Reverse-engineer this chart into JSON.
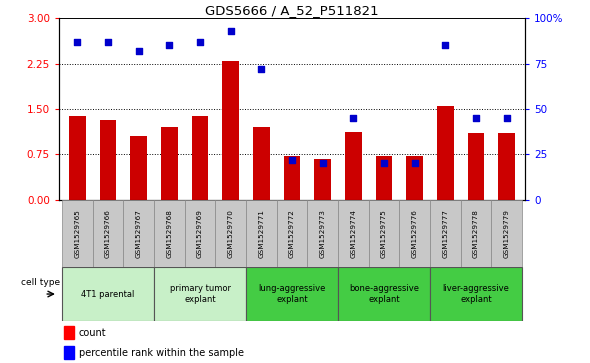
{
  "title": "GDS5666 / A_52_P511821",
  "samples": [
    "GSM1529765",
    "GSM1529766",
    "GSM1529767",
    "GSM1529768",
    "GSM1529769",
    "GSM1529770",
    "GSM1529771",
    "GSM1529772",
    "GSM1529773",
    "GSM1529774",
    "GSM1529775",
    "GSM1529776",
    "GSM1529777",
    "GSM1529778",
    "GSM1529779"
  ],
  "counts": [
    1.38,
    1.32,
    1.05,
    1.2,
    1.38,
    2.3,
    1.2,
    0.72,
    0.68,
    1.12,
    0.72,
    0.72,
    1.55,
    1.1,
    1.1
  ],
  "percentiles": [
    87,
    87,
    82,
    85,
    87,
    93,
    72,
    22,
    20,
    45,
    20,
    20,
    85,
    45,
    45
  ],
  "cell_groups": [
    {
      "label": "4T1 parental",
      "start": 0,
      "end": 2
    },
    {
      "label": "primary tumor\nexplant",
      "start": 3,
      "end": 5
    },
    {
      "label": "lung-aggressive\nexplant",
      "start": 6,
      "end": 8
    },
    {
      "label": "bone-aggressive\nexplant",
      "start": 9,
      "end": 11
    },
    {
      "label": "liver-aggressive\nexplant",
      "start": 12,
      "end": 14
    }
  ],
  "ylim_left": [
    0,
    3.0
  ],
  "ylim_right": [
    0,
    100
  ],
  "yticks_left": [
    0,
    0.75,
    1.5,
    2.25,
    3.0
  ],
  "yticks_right": [
    0,
    25,
    50,
    75,
    100
  ],
  "bar_color": "#cc0000",
  "dot_color": "#0000cc",
  "bg_color": "#ffffff",
  "legend_count_label": "count",
  "legend_pct_label": "percentile rank within the sample",
  "light_green": "#c8f0c8",
  "bright_green": "#44cc44",
  "grey_sample": "#c8c8c8"
}
